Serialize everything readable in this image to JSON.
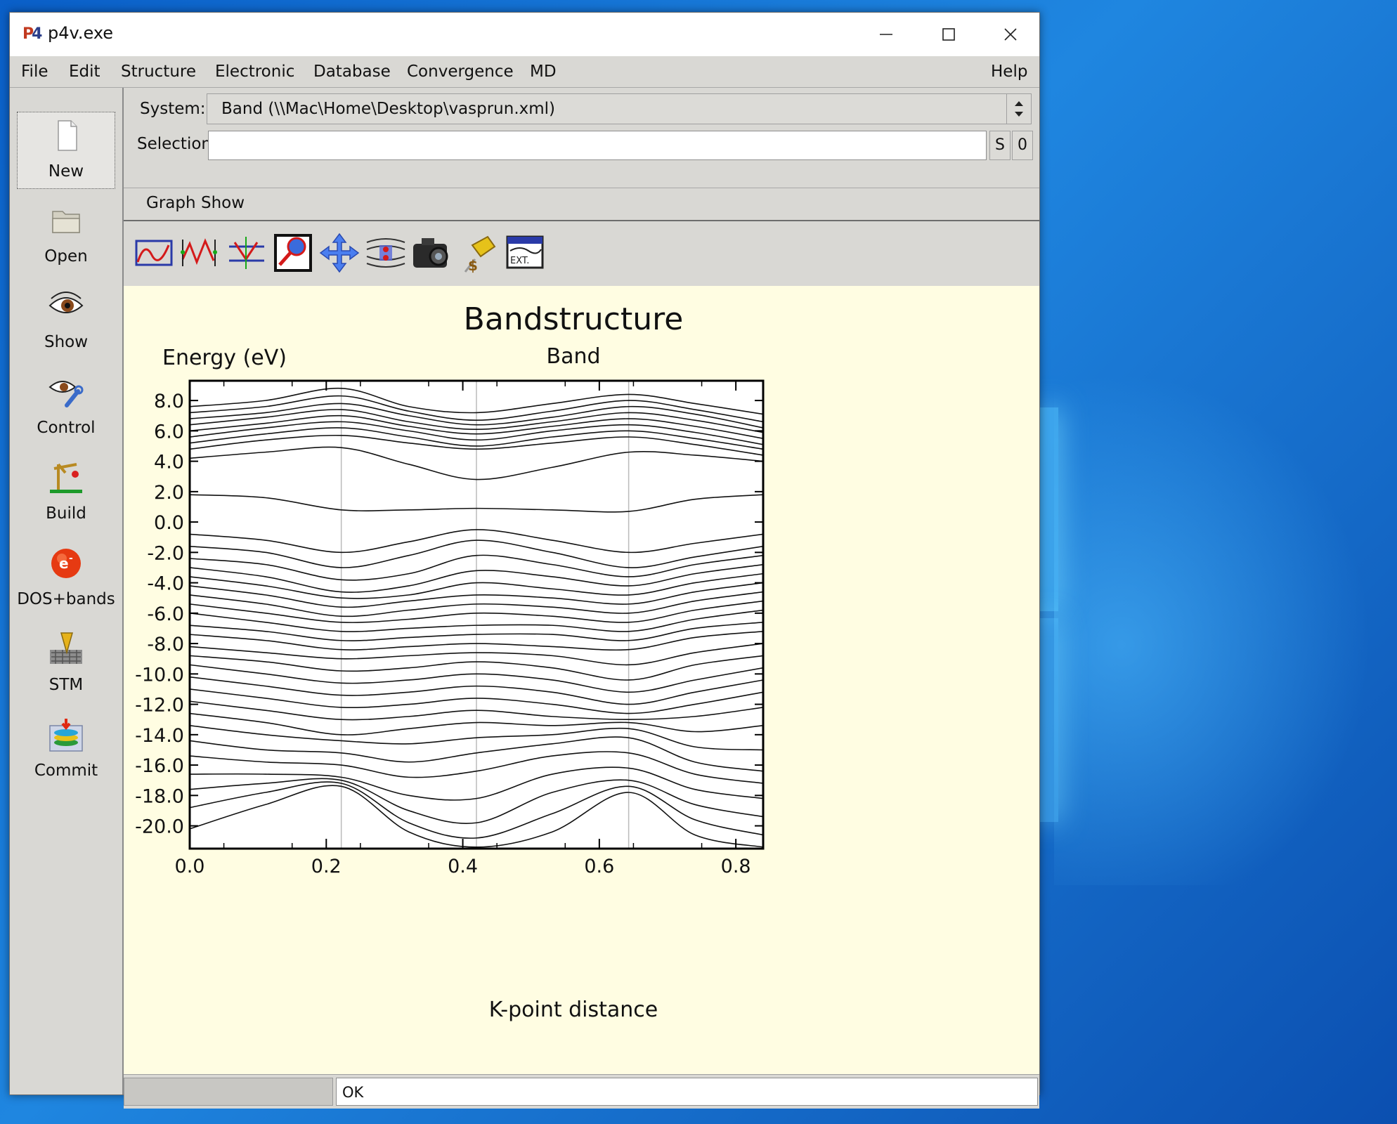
{
  "window": {
    "title": "p4v.exe"
  },
  "menu": [
    "File",
    "Edit",
    "Structure",
    "Electronic",
    "Database",
    "Convergence",
    "MD",
    "Help"
  ],
  "sidebar": [
    {
      "label": "New",
      "icon": "new-document-icon"
    },
    {
      "label": "Open",
      "icon": "open-folder-icon"
    },
    {
      "label": "Show",
      "icon": "eye-icon"
    },
    {
      "label": "Control",
      "icon": "eye-wrench-icon"
    },
    {
      "label": "Build",
      "icon": "crane-icon"
    },
    {
      "label": "DOS+bands",
      "icon": "electron-icon"
    },
    {
      "label": "STM",
      "icon": "stm-tip-icon"
    },
    {
      "label": "Commit",
      "icon": "database-commit-icon"
    }
  ],
  "system": {
    "label": "System:",
    "value": "Band (\\\\Mac\\Home\\Desktop\\vasprun.xml)"
  },
  "selection": {
    "label": "Selection:",
    "value": "",
    "btn_s": "S",
    "btn_0": "0"
  },
  "submenu": [
    "Graph",
    "Show"
  ],
  "toolbar": [
    "graph-select-icon",
    "graph-points-icon",
    "graph-bands-icon",
    "zoom-icon",
    "pan-icon",
    "levels-icon",
    "camera-icon",
    "pin-icon",
    "external-icon"
  ],
  "status": {
    "left": "",
    "right": "OK"
  },
  "chart_data": {
    "type": "line",
    "title": "Bandstructure",
    "subtitle": "Band",
    "ylabel": "Energy (eV)",
    "xlabel": "K-point distance",
    "xlim": [
      0.0,
      0.84
    ],
    "ylim": [
      -21.5,
      9.3
    ],
    "xticks": [
      "0.0",
      "0.2",
      "0.4",
      "0.6",
      "0.8"
    ],
    "yticks": [
      "8.0",
      "6.0",
      "4.0",
      "2.0",
      "0.0",
      "-2.0",
      "-4.0",
      "-6.0",
      "-8.0",
      "-10.0",
      "-12.0",
      "-14.0",
      "-16.0",
      "-18.0",
      "-20.0"
    ],
    "kpoint_markers": [
      0.222,
      0.42,
      0.643
    ],
    "bands_x": [
      0.0,
      0.111,
      0.222,
      0.321,
      0.42,
      0.531,
      0.643,
      0.74,
      0.84
    ],
    "bands": [
      [
        7.6,
        8.0,
        8.8,
        7.6,
        7.2,
        7.8,
        8.4,
        7.8,
        7.1
      ],
      [
        7.2,
        7.6,
        8.3,
        7.3,
        6.7,
        7.3,
        8.0,
        7.4,
        6.6
      ],
      [
        6.8,
        7.2,
        7.8,
        7.0,
        6.4,
        6.9,
        7.6,
        7.1,
        6.2
      ],
      [
        6.4,
        6.9,
        7.4,
        6.6,
        6.1,
        6.6,
        7.2,
        6.7,
        5.9
      ],
      [
        6.0,
        6.5,
        7.0,
        6.3,
        5.8,
        6.3,
        6.8,
        6.3,
        5.5
      ],
      [
        5.6,
        6.2,
        6.6,
        6.0,
        5.4,
        6.0,
        6.4,
        5.9,
        5.1
      ],
      [
        5.2,
        5.8,
        6.2,
        5.6,
        5.0,
        5.6,
        6.0,
        5.5,
        4.8
      ],
      [
        4.8,
        5.4,
        5.7,
        5.2,
        4.8,
        5.2,
        5.6,
        5.1,
        4.4
      ],
      [
        4.2,
        4.6,
        4.9,
        3.8,
        2.8,
        3.6,
        4.6,
        4.4,
        4.0
      ],
      [
        1.8,
        1.6,
        0.8,
        0.8,
        0.9,
        0.8,
        0.7,
        1.5,
        1.8
      ],
      [
        -0.8,
        -1.2,
        -2.0,
        -1.3,
        -0.5,
        -1.2,
        -2.0,
        -1.4,
        -0.8
      ],
      [
        -1.6,
        -2.0,
        -3.0,
        -2.2,
        -1.2,
        -2.0,
        -3.0,
        -2.3,
        -1.6
      ],
      [
        -2.4,
        -2.8,
        -3.8,
        -3.4,
        -2.2,
        -2.8,
        -3.6,
        -2.8,
        -2.2
      ],
      [
        -3.0,
        -3.6,
        -4.6,
        -4.2,
        -3.2,
        -3.6,
        -4.2,
        -3.4,
        -2.8
      ],
      [
        -3.6,
        -4.2,
        -5.0,
        -4.8,
        -4.0,
        -4.4,
        -4.8,
        -4.0,
        -3.4
      ],
      [
        -4.2,
        -4.8,
        -5.6,
        -5.2,
        -4.8,
        -5.0,
        -5.4,
        -4.6,
        -4.0
      ],
      [
        -4.8,
        -5.4,
        -6.2,
        -5.8,
        -5.4,
        -5.6,
        -6.0,
        -5.2,
        -4.6
      ],
      [
        -5.4,
        -6.0,
        -6.6,
        -6.4,
        -6.0,
        -6.2,
        -6.6,
        -5.8,
        -5.2
      ],
      [
        -6.0,
        -6.6,
        -7.2,
        -7.0,
        -6.8,
        -6.8,
        -7.2,
        -6.4,
        -5.8
      ],
      [
        -6.8,
        -7.2,
        -7.8,
        -7.6,
        -7.4,
        -7.4,
        -7.8,
        -7.0,
        -6.6
      ],
      [
        -7.4,
        -7.8,
        -8.4,
        -8.2,
        -8.0,
        -8.2,
        -8.4,
        -7.6,
        -7.2
      ],
      [
        -8.2,
        -8.6,
        -9.0,
        -8.8,
        -8.6,
        -8.8,
        -9.4,
        -8.6,
        -8.0
      ],
      [
        -8.8,
        -9.2,
        -9.8,
        -9.6,
        -9.2,
        -9.6,
        -10.4,
        -9.4,
        -8.8
      ],
      [
        -9.4,
        -10.0,
        -10.6,
        -10.4,
        -10.0,
        -10.4,
        -11.2,
        -10.4,
        -9.6
      ],
      [
        -10.2,
        -10.8,
        -11.4,
        -11.2,
        -10.8,
        -11.2,
        -12.0,
        -11.2,
        -10.4
      ],
      [
        -11.0,
        -11.6,
        -12.2,
        -12.0,
        -11.6,
        -12.0,
        -12.6,
        -12.0,
        -11.2
      ],
      [
        -11.8,
        -12.4,
        -13.0,
        -12.8,
        -12.4,
        -12.8,
        -13.0,
        -12.8,
        -12.2
      ],
      [
        -12.6,
        -13.2,
        -14.0,
        -13.6,
        -13.2,
        -13.4,
        -13.2,
        -13.8,
        -13.4
      ],
      [
        -13.4,
        -14.0,
        -14.4,
        -14.6,
        -14.2,
        -14.0,
        -13.6,
        -14.8,
        -15.0
      ],
      [
        -14.4,
        -15.0,
        -15.2,
        -15.8,
        -15.2,
        -14.6,
        -14.2,
        -15.8,
        -16.4
      ],
      [
        -15.4,
        -15.8,
        -16.0,
        -16.8,
        -16.4,
        -15.4,
        -15.2,
        -16.6,
        -17.2
      ],
      [
        -16.6,
        -16.6,
        -16.8,
        -18.0,
        -18.2,
        -16.6,
        -16.2,
        -17.6,
        -18.2
      ],
      [
        -17.6,
        -17.2,
        -17.0,
        -19.0,
        -19.8,
        -17.8,
        -17.0,
        -18.6,
        -19.4
      ],
      [
        -18.8,
        -17.8,
        -17.2,
        -19.8,
        -20.8,
        -19.2,
        -17.4,
        -19.6,
        -20.6
      ],
      [
        -20.2,
        -18.6,
        -17.4,
        -20.4,
        -21.4,
        -20.4,
        -17.8,
        -20.6,
        -21.4
      ]
    ]
  }
}
